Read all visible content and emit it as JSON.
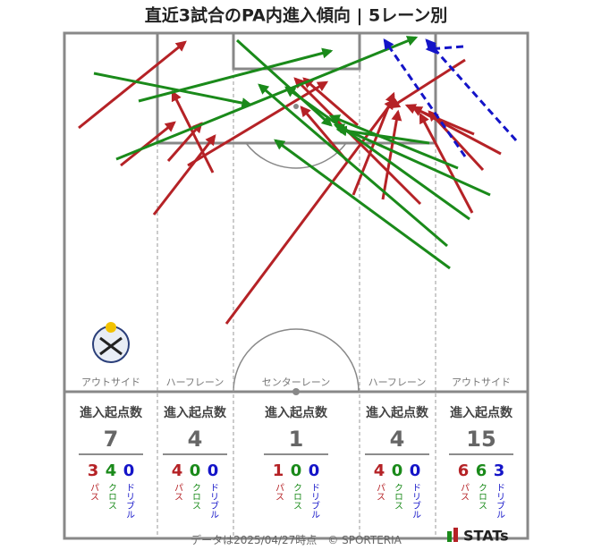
{
  "title": "直近3試合のPA内進入傾向 | 5レーン別",
  "header": "進入起点数",
  "breakdown_labels": [
    "パス",
    "クロス",
    "ドリブル"
  ],
  "lanes": [
    {
      "name": "アウトサイド",
      "total": 7,
      "breakdown": [
        3,
        4,
        0
      ]
    },
    {
      "name": "ハーフレーン",
      "total": 4,
      "breakdown": [
        4,
        0,
        0
      ]
    },
    {
      "name": "センターレーン",
      "total": 1,
      "breakdown": [
        1,
        0,
        0
      ]
    },
    {
      "name": "ハーフレーン",
      "total": 4,
      "breakdown": [
        4,
        0,
        0
      ]
    },
    {
      "name": "アウトサイド",
      "total": 15,
      "breakdown": [
        6,
        6,
        3
      ]
    }
  ],
  "footer": {
    "date": "データは2025/04/27時点",
    "credit": "© SPORTERIA",
    "logo": "STATs"
  }
}
